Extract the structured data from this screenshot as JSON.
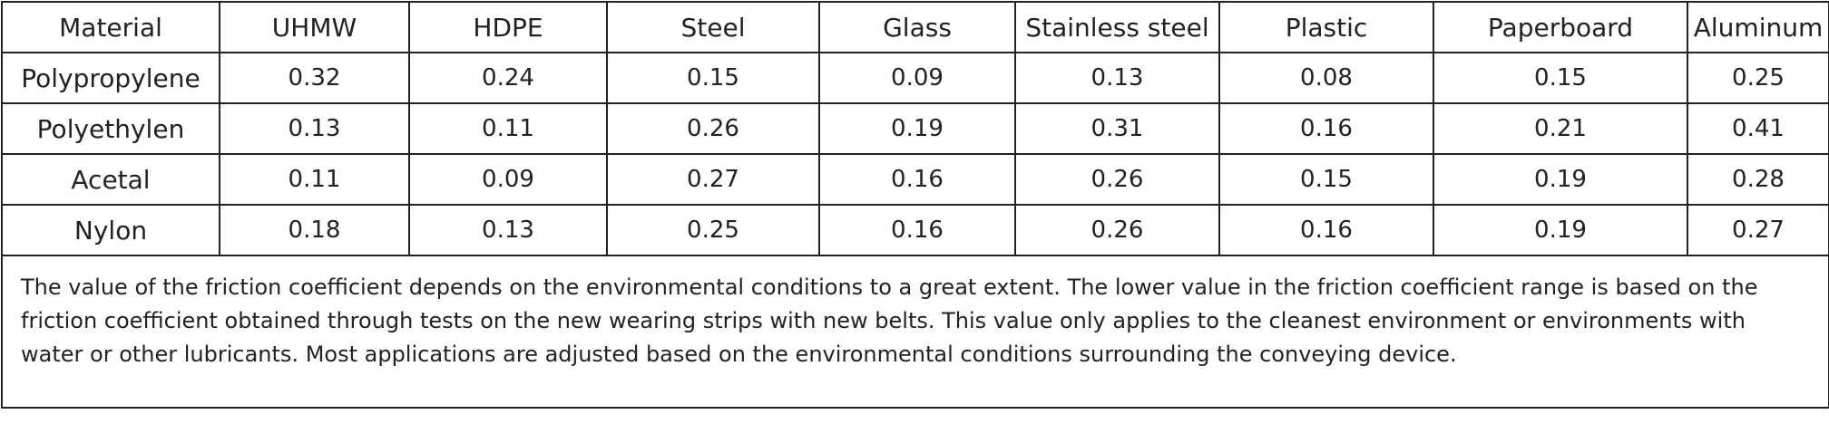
{
  "table": {
    "header": [
      "Material",
      "UHMW",
      "HDPE",
      "Steel",
      "Glass",
      "Stainless steel",
      "Plastic",
      "Paperboard",
      "Aluminum"
    ],
    "rows": [
      [
        "Polypropylene",
        "0.32",
        "0.24",
        "0.15",
        "0.09",
        "0.13",
        "0.08",
        "0.15",
        "0.25"
      ],
      [
        "Polyethylen",
        "0.13",
        "0.11",
        "0.26",
        "0.19",
        "0.31",
        "0.16",
        "0.21",
        "0.41"
      ],
      [
        "Acetal",
        "0.11",
        "0.09",
        "0.27",
        "0.16",
        "0.26",
        "0.15",
        "0.19",
        "0.28"
      ],
      [
        "Nylon",
        "0.18",
        "0.13",
        "0.25",
        "0.16",
        "0.26",
        "0.16",
        "0.19",
        "0.27"
      ]
    ],
    "note": "The value of the friction coefficient depends on the environmental conditions to a great extent. The lower value in the friction coefficient range is based on the friction coefficient obtained through tests on the new wearing strips with new belts. This value only applies to the cleanest environment or environments with water or other lubricants. Most applications are adjusted based on the environmental conditions surrounding the conveying device."
  }
}
